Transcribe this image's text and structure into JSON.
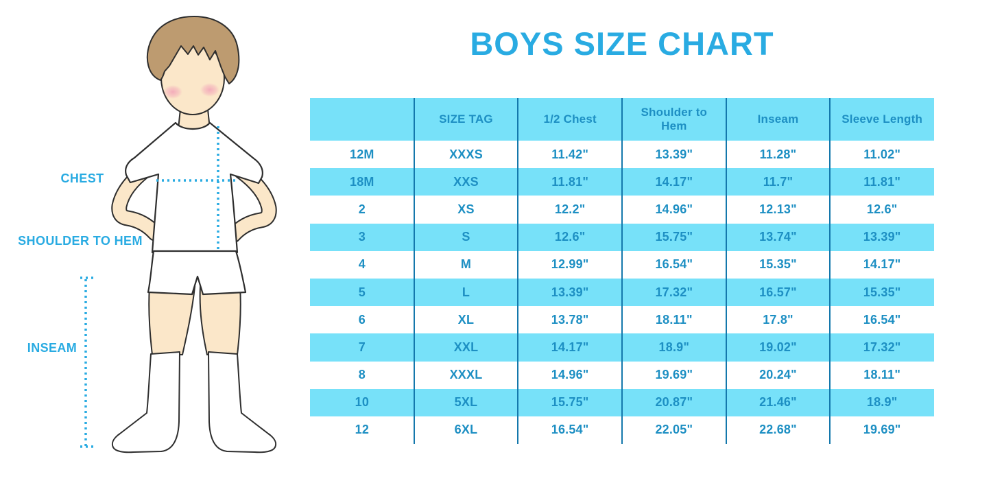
{
  "title": "BOYS SIZE CHART",
  "figure": {
    "description": "illustration of a boy in white t-shirt, shorts and knee socks with measurement guides",
    "labels": {
      "chest": "CHEST",
      "shoulder_to_hem": "SHOULDER TO HEM",
      "inseam": "INSEAM"
    }
  },
  "colors": {
    "accent_blue": "#29ABE2",
    "table_text": "#1D8FC3",
    "row_cyan": "#77E1F9",
    "divider_blue": "#1478AC",
    "hair_brown": "#BD9B70",
    "skin": "#FBE7C9",
    "blush_pink": "#F2A3B8",
    "outline": "#2E2E2E"
  },
  "chart_data": {
    "type": "table",
    "title": "BOYS SIZE CHART",
    "columns": [
      "",
      "SIZE TAG",
      "1/2 Chest",
      "Shoulder to Hem",
      "Inseam",
      "Sleeve Length"
    ],
    "rows": [
      [
        "12M",
        "XXXS",
        "11.42\"",
        "13.39\"",
        "11.28\"",
        "11.02\""
      ],
      [
        "18M",
        "XXS",
        "11.81\"",
        "14.17\"",
        "11.7\"",
        "11.81\""
      ],
      [
        "2",
        "XS",
        "12.2\"",
        "14.96\"",
        "12.13\"",
        "12.6\""
      ],
      [
        "3",
        "S",
        "12.6\"",
        "15.75\"",
        "13.74\"",
        "13.39\""
      ],
      [
        "4",
        "M",
        "12.99\"",
        "16.54\"",
        "15.35\"",
        "14.17\""
      ],
      [
        "5",
        "L",
        "13.39\"",
        "17.32\"",
        "16.57\"",
        "15.35\""
      ],
      [
        "6",
        "XL",
        "13.78\"",
        "18.11\"",
        "17.8\"",
        "16.54\""
      ],
      [
        "7",
        "XXL",
        "14.17\"",
        "18.9\"",
        "19.02\"",
        "17.32\""
      ],
      [
        "8",
        "XXXL",
        "14.96\"",
        "19.69\"",
        "20.24\"",
        "18.11\""
      ],
      [
        "10",
        "5XL",
        "15.75\"",
        "20.87\"",
        "21.46\"",
        "18.9\""
      ],
      [
        "12",
        "6XL",
        "16.54\"",
        "22.05\"",
        "22.68\"",
        "19.69\""
      ]
    ],
    "layout": {
      "striping": "header and every second data row filled light cyan, others white",
      "column_separators": "vertical dark blue lines between all columns",
      "grid": "no horizontal rules"
    }
  }
}
